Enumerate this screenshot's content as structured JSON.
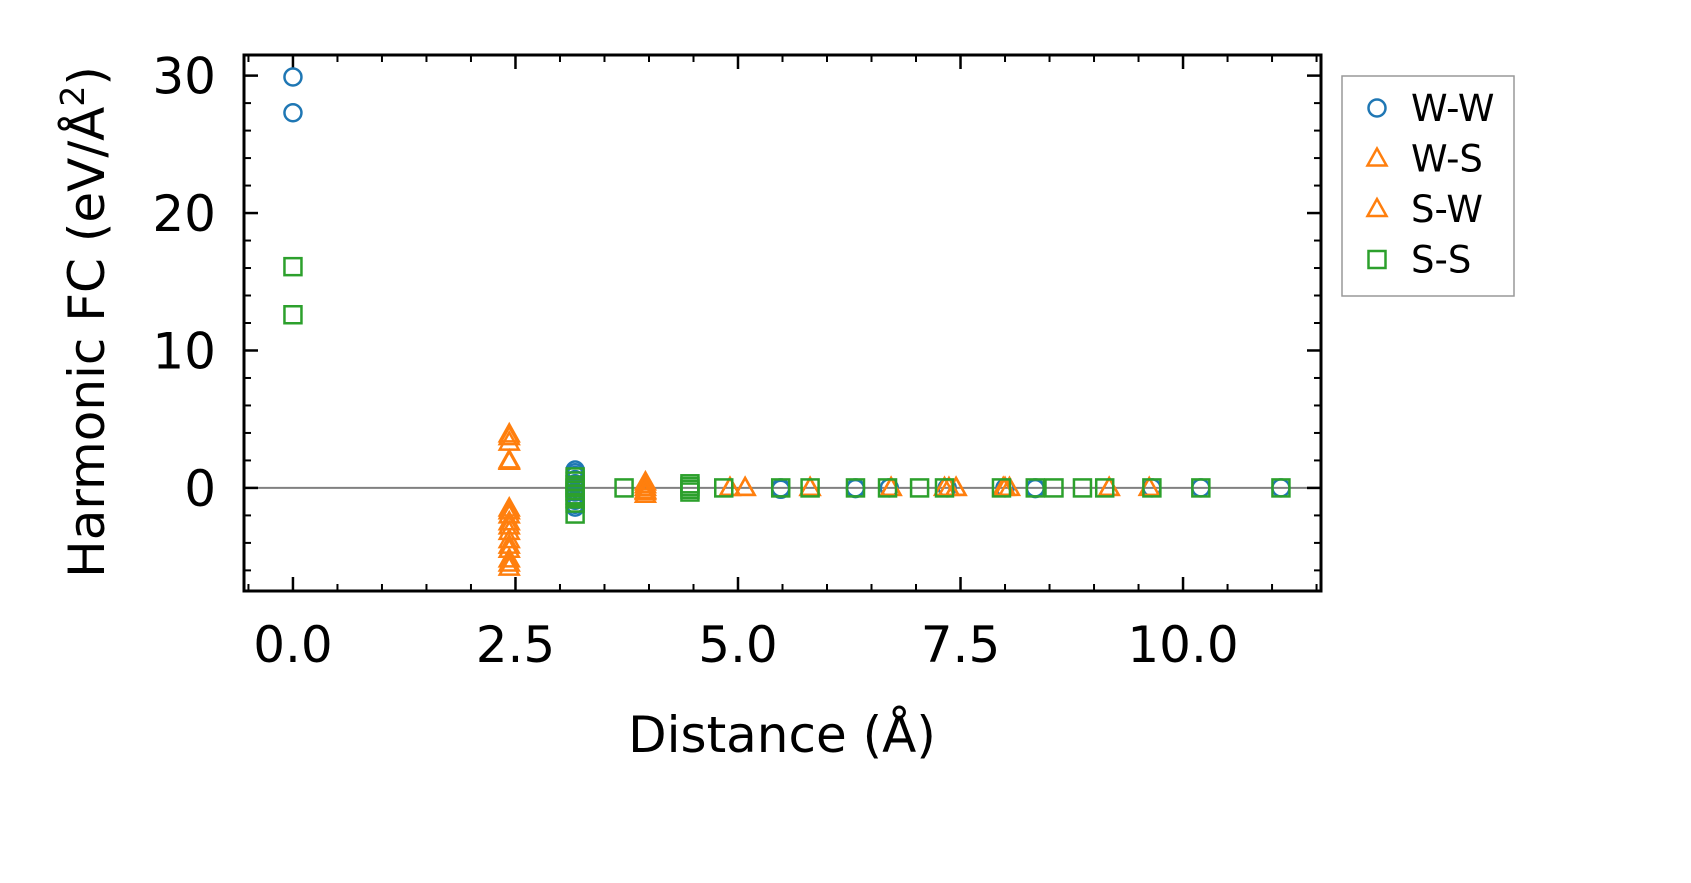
{
  "chart_data": {
    "type": "scatter",
    "xlabel": "Distance (Å)",
    "ylabel_main": "Harmonic FC (eV/Å",
    "ylabel_sup": "2",
    "ylabel_close": ")",
    "xlim": [
      -0.55,
      11.55
    ],
    "ylim": [
      -7.5,
      31.5
    ],
    "x_ticks": [
      0.0,
      2.5,
      5.0,
      7.5,
      10.0
    ],
    "x_tick_labels": [
      "0.0",
      "2.5",
      "5.0",
      "7.5",
      "10.0"
    ],
    "y_ticks": [
      0,
      10,
      20,
      30
    ],
    "y_tick_labels": [
      "0",
      "10",
      "20",
      "30"
    ],
    "zero_line": 0,
    "grid": false,
    "legend_position": "outside-right",
    "series": [
      {
        "name": "W-W",
        "marker": "circle",
        "color": "#1f77b4",
        "points": [
          [
            0.0,
            29.9
          ],
          [
            0.0,
            27.3
          ],
          [
            3.17,
            1.3
          ],
          [
            3.17,
            1.1
          ],
          [
            3.17,
            0.9
          ],
          [
            3.17,
            0.6
          ],
          [
            3.17,
            0.3
          ],
          [
            3.17,
            0.0
          ],
          [
            3.17,
            -0.3
          ],
          [
            3.17,
            -0.6
          ],
          [
            3.17,
            -0.9
          ],
          [
            3.17,
            -1.2
          ],
          [
            3.17,
            -1.4
          ],
          [
            5.48,
            0.0
          ],
          [
            5.48,
            -0.1
          ],
          [
            6.32,
            0.0
          ],
          [
            6.32,
            -0.05
          ],
          [
            6.7,
            0.0
          ],
          [
            7.35,
            0.0
          ],
          [
            8.0,
            0.0
          ],
          [
            8.34,
            0.0
          ],
          [
            8.34,
            -0.05
          ],
          [
            9.65,
            0.0
          ],
          [
            10.2,
            0.0
          ],
          [
            11.1,
            0.0
          ]
        ]
      },
      {
        "name": "W-S",
        "marker": "triangle",
        "color": "#ff7f0e",
        "points": [
          [
            2.43,
            3.9
          ],
          [
            2.43,
            3.3
          ],
          [
            2.43,
            1.9
          ],
          [
            2.43,
            -1.5
          ],
          [
            2.43,
            -2.0
          ],
          [
            2.43,
            -2.5
          ],
          [
            2.43,
            -3.2
          ],
          [
            2.43,
            -3.8
          ],
          [
            2.43,
            -4.5
          ],
          [
            2.43,
            -5.2
          ],
          [
            2.43,
            -5.8
          ],
          [
            3.96,
            0.4
          ],
          [
            3.96,
            0.0
          ],
          [
            3.96,
            -0.3
          ],
          [
            3.96,
            -0.5
          ],
          [
            4.91,
            0.0
          ],
          [
            5.08,
            0.0
          ],
          [
            5.81,
            0.0
          ],
          [
            6.72,
            0.0
          ],
          [
            7.32,
            0.0
          ],
          [
            7.45,
            0.0
          ],
          [
            7.98,
            0.0
          ],
          [
            8.05,
            0.0
          ],
          [
            9.17,
            0.0
          ],
          [
            9.62,
            0.0
          ]
        ]
      },
      {
        "name": "S-W",
        "marker": "triangle",
        "color": "#ff7f0e",
        "points": [
          [
            2.43,
            3.7
          ],
          [
            2.43,
            2.0
          ],
          [
            2.43,
            -1.7
          ],
          [
            2.43,
            -2.8
          ],
          [
            2.43,
            -4.2
          ],
          [
            2.43,
            -5.5
          ],
          [
            3.96,
            0.2
          ],
          [
            3.96,
            -0.2
          ],
          [
            4.91,
            0.0
          ],
          [
            5.08,
            0.0
          ],
          [
            5.81,
            0.0
          ],
          [
            6.72,
            0.0
          ],
          [
            7.37,
            0.0
          ],
          [
            7.45,
            0.0
          ],
          [
            8.0,
            0.0
          ],
          [
            9.17,
            0.0
          ]
        ]
      },
      {
        "name": "S-S",
        "marker": "square",
        "color": "#2ca02c",
        "points": [
          [
            0.0,
            16.1
          ],
          [
            0.0,
            12.6
          ],
          [
            3.17,
            0.8
          ],
          [
            3.17,
            0.5
          ],
          [
            3.17,
            0.2
          ],
          [
            3.17,
            0.0
          ],
          [
            3.17,
            -0.2
          ],
          [
            3.17,
            -0.5
          ],
          [
            3.17,
            -0.8
          ],
          [
            3.17,
            -1.1
          ],
          [
            3.17,
            -1.9
          ],
          [
            3.72,
            0.0
          ],
          [
            4.46,
            0.3
          ],
          [
            4.46,
            0.1
          ],
          [
            4.46,
            -0.1
          ],
          [
            4.46,
            -0.3
          ],
          [
            4.84,
            0.0
          ],
          [
            5.48,
            0.0
          ],
          [
            5.81,
            0.0
          ],
          [
            6.32,
            0.0
          ],
          [
            6.68,
            0.0
          ],
          [
            7.04,
            0.0
          ],
          [
            7.32,
            0.0
          ],
          [
            7.96,
            0.0
          ],
          [
            8.34,
            0.0
          ],
          [
            8.55,
            0.0
          ],
          [
            8.87,
            0.0
          ],
          [
            9.12,
            0.0
          ],
          [
            9.65,
            0.0
          ],
          [
            10.2,
            0.0
          ],
          [
            11.1,
            0.0
          ]
        ]
      }
    ]
  },
  "colors": {
    "axis": "#000000",
    "zero_line": "#808080",
    "legend_border": "#999999"
  }
}
